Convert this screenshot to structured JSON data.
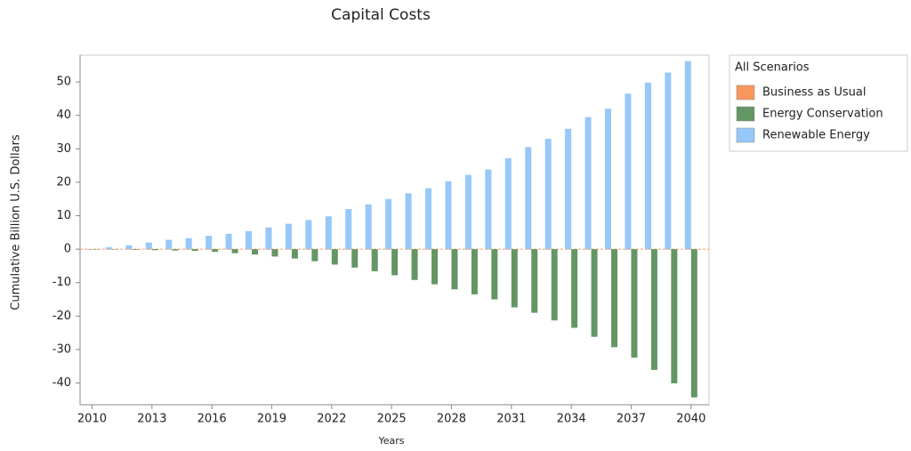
{
  "chart_data": {
    "type": "bar",
    "title": "Capital Costs",
    "x_label": "Years",
    "y_label": "Cumulative Billion U.S. Dollars",
    "legend_title": "All Scenarios",
    "x": [
      2010,
      2011,
      2012,
      2013,
      2014,
      2015,
      2016,
      2017,
      2018,
      2019,
      2020,
      2021,
      2022,
      2023,
      2024,
      2025,
      2026,
      2027,
      2028,
      2029,
      2030,
      2031,
      2032,
      2033,
      2034,
      2035,
      2036,
      2037,
      2038,
      2039,
      2040
    ],
    "series": [
      {
        "name": "Business as Usual",
        "color": "#f9965e",
        "values": [
          0,
          0,
          0,
          0,
          0,
          0,
          0,
          0,
          0,
          0,
          0,
          0,
          0,
          0,
          0,
          0,
          0,
          0,
          0,
          0,
          0,
          0,
          0,
          0,
          0,
          0,
          0,
          0,
          0,
          0,
          0
        ]
      },
      {
        "name": "Energy Conservation",
        "color": "#649664",
        "values": [
          0,
          -0.1,
          -0.2,
          -0.3,
          -0.4,
          -0.5,
          -0.8,
          -1.2,
          -1.6,
          -2.2,
          -2.8,
          -3.6,
          -4.6,
          -5.5,
          -6.6,
          -7.8,
          -9.2,
          -10.5,
          -12,
          -13.5,
          -15,
          -17.4,
          -19,
          -21.3,
          -23.5,
          -26.2,
          -29.3,
          -32.4,
          -36.1,
          -40.1,
          -44.3
        ]
      },
      {
        "name": "Renewable Energy",
        "color": "#96c8f8",
        "values": [
          0,
          0.6,
          1.2,
          2,
          2.8,
          3.3,
          4,
          4.6,
          5.4,
          6.5,
          7.6,
          8.7,
          9.8,
          12,
          13.4,
          15,
          16.7,
          18.2,
          20.3,
          22.2,
          23.8,
          27.2,
          30.5,
          33,
          36,
          39.5,
          42,
          46.5,
          49.8,
          52.8,
          56.2
        ]
      }
    ],
    "xlim": [
      2009.4,
      2040.9
    ],
    "xticks": [
      2010,
      2013,
      2016,
      2019,
      2022,
      2025,
      2028,
      2031,
      2034,
      2037,
      2040
    ],
    "ylim": [
      -46.5,
      58
    ],
    "yticks": [
      -40,
      -30,
      -20,
      -10,
      0,
      10,
      20,
      30,
      40,
      50
    ],
    "legend": "right"
  }
}
